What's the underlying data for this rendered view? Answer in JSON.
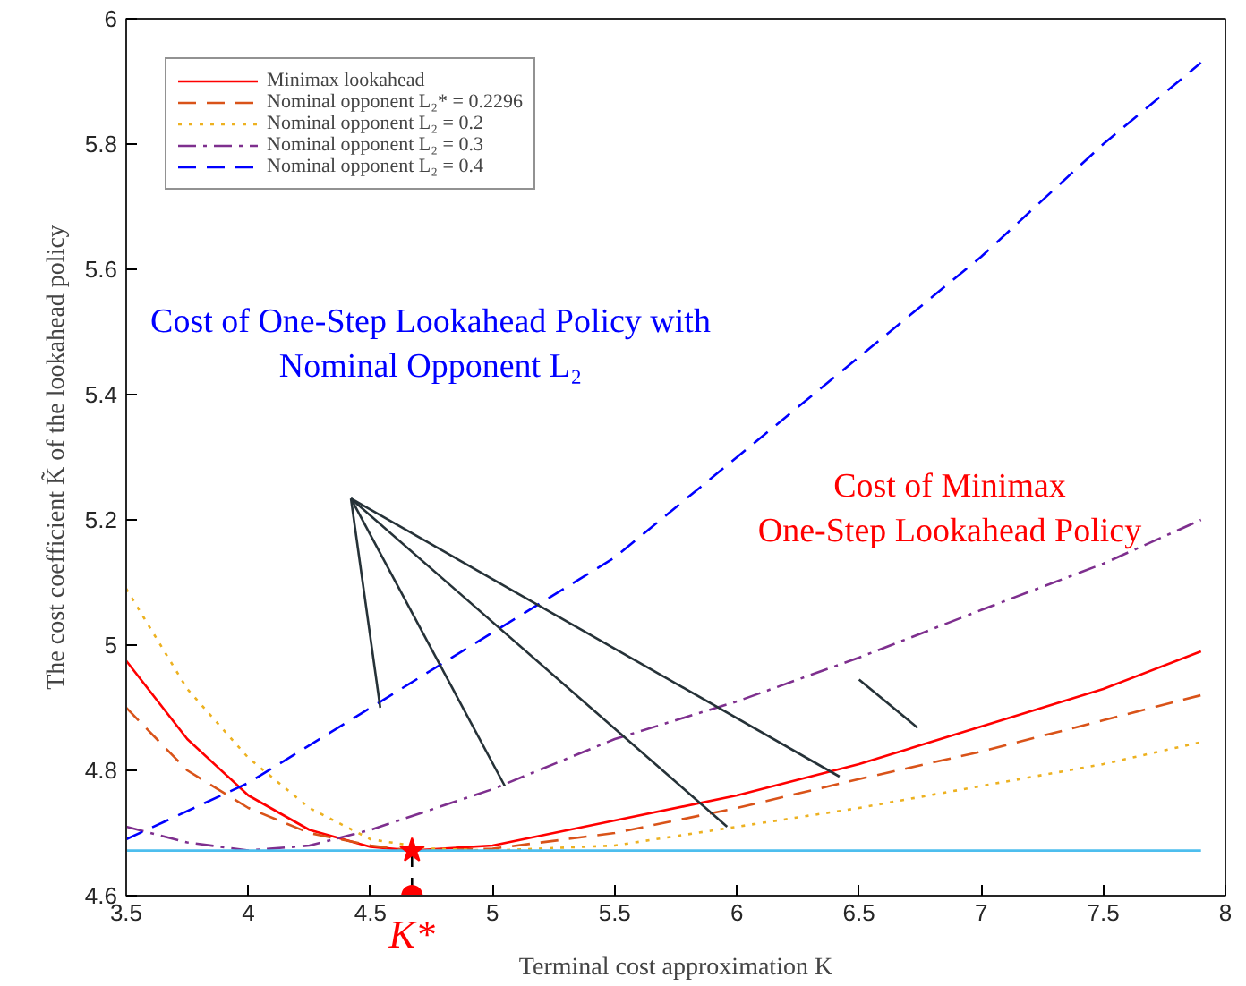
{
  "chart_data": {
    "type": "line",
    "xlabel": "Terminal cost approximation K",
    "ylabel": "The cost coefficient K̃ of the lookahead policy",
    "xlim": [
      3.5,
      8
    ],
    "ylim": [
      4.6,
      6
    ],
    "xticks": [
      3.5,
      4,
      4.5,
      5,
      5.5,
      6,
      6.5,
      7,
      7.5,
      8
    ],
    "yticks": [
      4.6,
      4.8,
      5,
      5.2,
      5.4,
      5.6,
      5.8,
      6
    ],
    "grid": false,
    "legend": "top left",
    "series": [
      {
        "name": "Minimax lookahead",
        "color": "#ff0000",
        "line_style": "solid",
        "x": [
          3.5,
          3.75,
          4,
          4.25,
          4.5,
          4.67,
          5,
          5.5,
          6,
          6.5,
          7,
          7.5,
          7.9
        ],
        "values": [
          4.975,
          4.85,
          4.76,
          4.705,
          4.678,
          4.672,
          4.68,
          4.72,
          4.76,
          4.81,
          4.87,
          4.93,
          4.99
        ]
      },
      {
        "name": "Nominal opponent L₂* = 0.2296",
        "color": "#d95319",
        "line_style": "dashed",
        "x": [
          3.5,
          3.75,
          4,
          4.25,
          4.5,
          4.67,
          5,
          5.5,
          6,
          6.5,
          7,
          7.5,
          7.9
        ],
        "values": [
          4.9,
          4.8,
          4.74,
          4.7,
          4.68,
          4.672,
          4.675,
          4.7,
          4.74,
          4.786,
          4.83,
          4.88,
          4.92
        ]
      },
      {
        "name": "Nominal opponent L₂ = 0.2",
        "color": "#edb120",
        "line_style": "dotted",
        "x": [
          3.5,
          3.75,
          4,
          4.25,
          4.5,
          4.75,
          5,
          5.5,
          6,
          6.5,
          7,
          7.5,
          7.9
        ],
        "values": [
          5.09,
          4.93,
          4.82,
          4.74,
          4.69,
          4.675,
          4.672,
          4.68,
          4.71,
          4.74,
          4.775,
          4.81,
          4.845
        ]
      },
      {
        "name": "Nominal opponent L₂ = 0.3",
        "color": "#7e2f8e",
        "line_style": "dashdot",
        "x": [
          3.5,
          3.75,
          4,
          4.25,
          4.5,
          5,
          5.5,
          6,
          6.5,
          7,
          7.5,
          7.9
        ],
        "values": [
          4.71,
          4.685,
          4.672,
          4.68,
          4.705,
          4.77,
          4.85,
          4.91,
          4.98,
          5.056,
          5.13,
          5.2
        ]
      },
      {
        "name": "Nominal opponent L₂ = 0.4",
        "color": "#0000ff",
        "line_style": "dashed",
        "x": [
          3.5,
          4,
          4.5,
          5,
          5.5,
          6,
          6.5,
          7,
          7.5,
          7.9
        ],
        "values": [
          4.69,
          4.78,
          4.9,
          5.02,
          5.14,
          5.3,
          5.46,
          5.62,
          5.8,
          5.93
        ]
      },
      {
        "color": "#4dbeee",
        "line_style": "solid",
        "x": [
          3.5,
          7.9
        ],
        "values": [
          4.672,
          4.672
        ]
      },
      {
        "color": "#000000",
        "line_style": "dashed",
        "x": [
          4.67,
          4.67
        ],
        "values": [
          4.6,
          4.672
        ]
      },
      {
        "type": "scatter",
        "marker": "star",
        "color": "#ff0000",
        "x": [
          4.67
        ],
        "values": [
          4.672
        ]
      },
      {
        "type": "scatter",
        "marker": "circle",
        "color": "#ff0000",
        "x": [
          4.67
        ],
        "values": [
          4.6
        ]
      },
      {
        "color": "#263238",
        "line_style": "solid",
        "x": [
          4.42,
          4.54
        ],
        "values": [
          5.234,
          4.9
        ]
      },
      {
        "color": "#263238",
        "line_style": "solid",
        "x": [
          4.42,
          5.05
        ],
        "values": [
          5.234,
          4.775
        ]
      },
      {
        "color": "#263238",
        "line_style": "solid",
        "x": [
          4.42,
          5.96
        ],
        "values": [
          5.234,
          4.71
        ]
      },
      {
        "color": "#263238",
        "line_style": "solid",
        "x": [
          4.42,
          6.42
        ],
        "values": [
          5.234,
          4.79
        ]
      },
      {
        "color": "#263238",
        "line_style": "solid",
        "x": [
          6.5,
          6.74
        ],
        "values": [
          4.945,
          4.868
        ]
      }
    ],
    "annotations": [
      "Cost of One-Step Lookahead Policy with\nNominal Opponent L₂",
      "Cost of Minimax\nOne-Step Lookahead Policy",
      {
        "text": "K*",
        "x": 4.67,
        "y": 4.6
      }
    ]
  }
}
